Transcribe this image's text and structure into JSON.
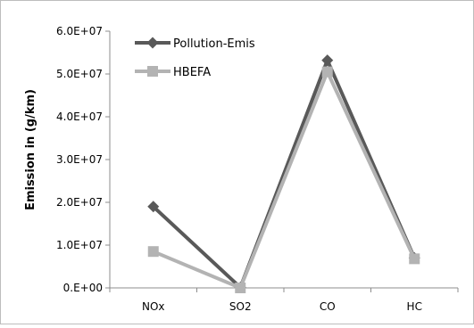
{
  "chart_data": {
    "type": "line",
    "title": "",
    "xlabel": "",
    "ylabel": "Emission in (g/km)",
    "categories": [
      "NOx",
      "SO2",
      "CO",
      "HC"
    ],
    "ylim": [
      0,
      60000000
    ],
    "yticks": [
      0,
      10000000,
      20000000,
      30000000,
      40000000,
      50000000,
      60000000
    ],
    "ytick_labels": [
      "0.E+00",
      "1.0E+07",
      "2.0E+07",
      "3.0E+07",
      "4.0E+07",
      "5.0E+07",
      "6.0E+07"
    ],
    "grid": false,
    "legend_position": "top-left",
    "series": [
      {
        "name": "Pollution-Emis",
        "values": [
          19000000,
          100000,
          53200000,
          7000000
        ],
        "color": "#595959",
        "marker": "diamond"
      },
      {
        "name": "HBEFA",
        "values": [
          8500000,
          0,
          50500000,
          6800000
        ],
        "color": "#b3b3b3",
        "marker": "square"
      }
    ]
  }
}
